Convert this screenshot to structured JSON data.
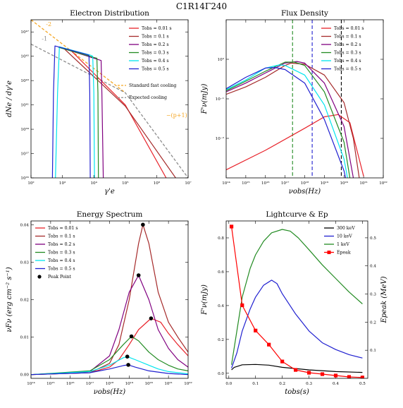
{
  "figure_title": "C1R14Γ240",
  "colors": {
    "t001": "#e8222a",
    "t01": "#a52a2a",
    "t02": "#800080",
    "t03": "#228b22",
    "t04": "#00e5ee",
    "t05": "#1f1fd0",
    "orange": "#f5a623",
    "gray": "#8c8c8c",
    "c300": "#000000",
    "c10": "#1f1fd0",
    "c1": "#228b22",
    "epeak": "#ff0000"
  },
  "chart_data": [
    {
      "type": "line",
      "title": "Electron Distribution",
      "xlabel": "γ'e",
      "ylabel": "dNe / dγ'e",
      "xscale": "log",
      "yscale": "log",
      "xlim": [
        100,
        10000000
      ],
      "ylim": [
        1e+35,
        1e+48
      ],
      "x_ticks": [
        {
          "v": 100,
          "l": "10²"
        },
        {
          "v": 1000,
          "l": "10³"
        },
        {
          "v": 10000,
          "l": "10⁴"
        },
        {
          "v": 100000,
          "l": "10⁵"
        },
        {
          "v": 1000000,
          "l": "10⁶"
        },
        {
          "v": 10000000,
          "l": "10⁷"
        }
      ],
      "y_ticks": [
        {
          "v": 1e+35,
          "l": "10³⁵"
        },
        {
          "v": 1e+37,
          "l": "10³⁷"
        },
        {
          "v": 1e+39,
          "l": "10³⁹"
        },
        {
          "v": 1e+41,
          "l": "10⁴¹"
        },
        {
          "v": 1e+43,
          "l": "10⁴³"
        },
        {
          "v": 1e+45,
          "l": "10⁴⁵"
        },
        {
          "v": 1e+47,
          "l": "10⁴⁷"
        }
      ],
      "legend_position": "top-right",
      "series": [
        {
          "name": "Tobs = 0.01 s",
          "color_key": "t001",
          "x": [
            1800,
            2000,
            100000,
            2000000
          ],
          "y": [
            3e+45,
            2.5e+45,
            1e+41,
            1e+35
          ]
        },
        {
          "name": "Tobs = 0.1 s",
          "color_key": "t01",
          "x": [
            1000,
            1100,
            100000,
            4000000
          ],
          "y": [
            5e+45,
            4.5e+45,
            8e+40,
            1e+35
          ]
        },
        {
          "name": "Tobs = 0.2 s",
          "color_key": "t02",
          "x": [
            880,
            1000,
            15000,
            17000,
            18000,
            20000
          ],
          "y": [
            5e+45,
            4.6e+45,
            5e+44,
            4.5e+44,
            1e+42,
            1e+35
          ]
        },
        {
          "name": "Tobs = 0.3 s",
          "color_key": "t03",
          "x": [
            750,
            900,
            10000,
            12500,
            13500,
            14000
          ],
          "y": [
            5.5e+45,
            4.8e+45,
            8e+44,
            7e+44,
            1e+42,
            1e+35
          ]
        },
        {
          "name": "Tobs = 0.4 s",
          "color_key": "t04",
          "x": [
            600,
            700,
            800,
            8000,
            9200,
            10000,
            10500
          ],
          "y": [
            1e+35,
            1e+42,
            6e+45,
            1.2e+45,
            1e+45,
            1e+42,
            1e+35
          ]
        },
        {
          "name": "Tobs = 0.5 s",
          "color_key": "t05",
          "x": [
            480,
            520,
            580,
            6000,
            7000,
            7400,
            7700
          ],
          "y": [
            1e+35,
            1e+42,
            7e+45,
            1.4e+45,
            1.2e+45,
            1e+42,
            1e+35
          ]
        }
      ],
      "reference_lines": [
        {
          "name": "Standard fast cooling",
          "color_key": "orange",
          "x": [
            100,
            100000
          ],
          "y": [
            1e+48,
            1e+42
          ]
        },
        {
          "name": "Expected cooling",
          "color_key": "gray",
          "x": [
            100,
            100000,
            10000000
          ],
          "y": [
            1e+46,
            1e+42,
            1e+35
          ]
        }
      ],
      "annotations": [
        {
          "text": "-2",
          "color_key": "orange",
          "x": 300,
          "y": 3e+47
        },
        {
          "text": "-1",
          "color_key": "gray",
          "x": 220,
          "y": 2e+46
        },
        {
          "text": "−(p+1)",
          "color_key": "orange",
          "x": 2000000,
          "y": 1e+40
        }
      ]
    },
    {
      "type": "line",
      "title": "Flux Density",
      "xlabel": "νobs(Hz)",
      "ylabel": "F'ν(mJy)",
      "xscale": "log",
      "yscale": "log",
      "xlim": [
        100000000000000.0,
        1e+22
      ],
      "ylim": [
        0.001,
        10
      ],
      "x_ticks": [
        {
          "v": 100000000000000.0,
          "l": "10¹⁴"
        },
        {
          "v": 1000000000000000.0,
          "l": "10¹⁵"
        },
        {
          "v": 1e+16,
          "l": "10¹⁶"
        },
        {
          "v": 1e+17,
          "l": "10¹⁷"
        },
        {
          "v": 1e+18,
          "l": "10¹⁸"
        },
        {
          "v": 1e+19,
          "l": "10¹⁹"
        },
        {
          "v": 1e+20,
          "l": "10²⁰"
        },
        {
          "v": 1e+21,
          "l": "10²¹"
        },
        {
          "v": 1e+22,
          "l": "10²²"
        }
      ],
      "y_ticks": [
        {
          "v": 0.01,
          "l": "10⁻²"
        },
        {
          "v": 0.1,
          "l": "10⁻¹"
        },
        {
          "v": 1,
          "l": "10⁰"
        }
      ],
      "legend_position": "top-right",
      "vlines": [
        {
          "x": 2.4e+17,
          "color_key": "c1"
        },
        {
          "x": 2.4e+18,
          "color_key": "c10"
        },
        {
          "x": 7.3e+19,
          "color_key": "c300"
        }
      ],
      "series": [
        {
          "name": "Tobs = 0.01 s",
          "color_key": "t001",
          "x": [
            100000000000000.0,
            1e+16,
            1e+18,
            1e+19,
            5e+19,
            2e+20,
            1e+21
          ],
          "y": [
            0.0016,
            0.005,
            0.018,
            0.035,
            0.04,
            0.025,
            0.0011
          ]
        },
        {
          "name": "Tobs = 0.1 s",
          "color_key": "t01",
          "x": [
            100000000000000.0,
            1000000000000000.0,
            1e+16,
            1e+17,
            2e+17,
            1e+18,
            1e+19,
            1e+20,
            3e+20,
            6e+20
          ],
          "y": [
            0.13,
            0.2,
            0.35,
            0.7,
            0.8,
            0.75,
            0.4,
            0.08,
            0.01,
            0.001
          ]
        },
        {
          "name": "Tobs = 0.2 s",
          "color_key": "t02",
          "x": [
            100000000000000.0,
            1000000000000000.0,
            1e+16,
            1e+17,
            4e+17,
            1e+18,
            1e+19,
            1e+20,
            3e+20
          ],
          "y": [
            0.15,
            0.25,
            0.45,
            0.8,
            0.88,
            0.8,
            0.25,
            0.02,
            0.001
          ]
        },
        {
          "name": "Tobs = 0.3 s",
          "color_key": "t03",
          "x": [
            100000000000000.0,
            1000000000000000.0,
            1e+16,
            1e+17,
            3e+17,
            1e+18,
            1e+19,
            1e+20,
            2e+20
          ],
          "y": [
            0.16,
            0.28,
            0.5,
            0.85,
            0.85,
            0.7,
            0.15,
            0.008,
            0.001
          ]
        },
        {
          "name": "Tobs = 0.4 s",
          "color_key": "t04",
          "x": [
            100000000000000.0,
            1000000000000000.0,
            1e+16,
            5e+16,
            1e+17,
            1e+18,
            1e+19,
            1e+20,
            1.5e+20
          ],
          "y": [
            0.17,
            0.3,
            0.6,
            0.72,
            0.7,
            0.4,
            0.07,
            0.003,
            0.001
          ]
        },
        {
          "name": "Tobs = 0.5 s",
          "color_key": "t05",
          "x": [
            100000000000000.0,
            1000000000000000.0,
            1e+16,
            3e+16,
            1e+17,
            1e+18,
            1e+19,
            1e+20,
            1.2e+20
          ],
          "y": [
            0.18,
            0.35,
            0.6,
            0.62,
            0.55,
            0.25,
            0.03,
            0.0015,
            0.001
          ]
        }
      ]
    },
    {
      "type": "line",
      "title": "Energy Spectrum",
      "xlabel": "νobs(Hz)",
      "ylabel": "νFν (erg cm⁻² s⁻¹)",
      "xscale": "log",
      "yscale": "linear",
      "xlim": [
        100000000000000.0,
        1e+22
      ],
      "ylim": [
        -0.001,
        0.041
      ],
      "x_ticks": [
        {
          "v": 100000000000000.0,
          "l": "10¹⁴"
        },
        {
          "v": 1000000000000000.0,
          "l": "10¹⁵"
        },
        {
          "v": 1e+16,
          "l": "10¹⁶"
        },
        {
          "v": 1e+17,
          "l": "10¹⁷"
        },
        {
          "v": 1e+18,
          "l": "10¹⁸"
        },
        {
          "v": 1e+19,
          "l": "10¹⁹"
        },
        {
          "v": 1e+20,
          "l": "10²⁰"
        },
        {
          "v": 1e+21,
          "l": "10²¹"
        },
        {
          "v": 1e+22,
          "l": "10²²"
        }
      ],
      "y_ticks": [
        {
          "v": 0,
          "l": "0.00"
        },
        {
          "v": 0.01,
          "l": "0.01"
        },
        {
          "v": 0.02,
          "l": "0.02"
        },
        {
          "v": 0.03,
          "l": "0.03"
        },
        {
          "v": 0.04,
          "l": "0.04"
        }
      ],
      "legend_position": "top-left",
      "series": [
        {
          "name": "Tobs = 0.01 s",
          "color_key": "t001",
          "x": [
            100000000000000.0,
            1e+17,
            1e+18,
            3e+18,
            1e+19,
            3e+19,
            1.3e+20,
            4e+20,
            1e+21,
            3e+21,
            1e+22
          ],
          "y": [
            0,
            0.0005,
            0.002,
            0.004,
            0.008,
            0.012,
            0.015,
            0.014,
            0.011,
            0.008,
            0.005
          ]
        },
        {
          "name": "Tobs = 0.1 s",
          "color_key": "t01",
          "x": [
            100000000000000.0,
            1e+17,
            1e+18,
            3e+18,
            1e+19,
            3e+19,
            5e+19,
            1e+20,
            3e+20,
            1e+21,
            3e+21,
            1e+22
          ],
          "y": [
            0,
            0.0005,
            0.003,
            0.008,
            0.02,
            0.035,
            0.04,
            0.035,
            0.022,
            0.014,
            0.01,
            0.006
          ]
        },
        {
          "name": "Tobs = 0.2 s",
          "color_key": "t02",
          "x": [
            100000000000000.0,
            1e+17,
            1e+18,
            3e+18,
            1e+19,
            3e+19,
            1e+20,
            3e+20,
            1e+21,
            3e+21,
            1e+22
          ],
          "y": [
            0,
            0.0008,
            0.005,
            0.012,
            0.022,
            0.0265,
            0.02,
            0.012,
            0.007,
            0.004,
            0.002
          ]
        },
        {
          "name": "Tobs = 0.3 s",
          "color_key": "t03",
          "x": [
            100000000000000.0,
            1e+17,
            1e+18,
            5e+18,
            1.3e+19,
            3e+19,
            1e+20,
            3e+20,
            1e+21,
            3e+21,
            1e+22
          ],
          "y": [
            0,
            0.001,
            0.004,
            0.008,
            0.0102,
            0.009,
            0.006,
            0.004,
            0.0025,
            0.0015,
            0.001
          ]
        },
        {
          "name": "Tobs = 0.4 s",
          "color_key": "t04",
          "x": [
            100000000000000.0,
            1e+17,
            1e+18,
            5e+18,
            8e+18,
            2e+19,
            1e+20,
            3e+20,
            1e+21,
            1e+22
          ],
          "y": [
            0,
            0.0008,
            0.0025,
            0.0045,
            0.0048,
            0.004,
            0.0025,
            0.0015,
            0.0008,
            0.0002
          ]
        },
        {
          "name": "Tobs = 0.5 s",
          "color_key": "t05",
          "x": [
            100000000000000.0,
            1e+17,
            1e+18,
            5e+18,
            9e+18,
            2e+19,
            1e+20,
            1e+21,
            1e+22
          ],
          "y": [
            0,
            0.0005,
            0.0015,
            0.0024,
            0.0026,
            0.002,
            0.001,
            0.0003,
            0
          ]
        }
      ],
      "peak_points": {
        "name": "Peak Point",
        "x": [
          1.3e+20,
          5e+19,
          3e+19,
          1.3e+19,
          8e+18,
          9e+18
        ],
        "y": [
          0.015,
          0.04,
          0.0265,
          0.0102,
          0.0048,
          0.0026
        ]
      }
    },
    {
      "type": "line",
      "title": "Lightcurve & Ep",
      "xlabel": "tobs(s)",
      "ylabel": "F'ν(mJy)",
      "ylabel_right": "Epeak (MeV)",
      "xlim": [
        -0.01,
        0.52
      ],
      "ylim": [
        -0.03,
        0.9
      ],
      "ylim_right": [
        0,
        0.56
      ],
      "x_ticks": [
        {
          "v": 0,
          "l": "0.0"
        },
        {
          "v": 0.1,
          "l": "0.1"
        },
        {
          "v": 0.2,
          "l": "0.2"
        },
        {
          "v": 0.3,
          "l": "0.3"
        },
        {
          "v": 0.4,
          "l": "0.4"
        },
        {
          "v": 0.5,
          "l": "0.5"
        }
      ],
      "y_ticks": [
        {
          "v": 0,
          "l": "0.0"
        },
        {
          "v": 0.2,
          "l": "0.2"
        },
        {
          "v": 0.4,
          "l": "0.4"
        },
        {
          "v": 0.6,
          "l": "0.6"
        },
        {
          "v": 0.8,
          "l": "0.8"
        }
      ],
      "y_ticks_right": [
        {
          "v": 0.1,
          "l": "0.1"
        },
        {
          "v": 0.2,
          "l": "0.2"
        },
        {
          "v": 0.3,
          "l": "0.3"
        },
        {
          "v": 0.4,
          "l": "0.4"
        },
        {
          "v": 0.5,
          "l": "0.5"
        }
      ],
      "legend_position": "top-right",
      "series": [
        {
          "name": "300 keV",
          "color_key": "c300",
          "axis": "left",
          "x": [
            0.01,
            0.02,
            0.05,
            0.1,
            0.15,
            0.2,
            0.3,
            0.4,
            0.5
          ],
          "y": [
            0.02,
            0.035,
            0.05,
            0.052,
            0.048,
            0.035,
            0.02,
            0.01,
            0.005
          ]
        },
        {
          "name": "10 keV",
          "color_key": "c10",
          "axis": "left",
          "x": [
            0.01,
            0.03,
            0.05,
            0.08,
            0.1,
            0.13,
            0.16,
            0.18,
            0.2,
            0.25,
            0.3,
            0.35,
            0.4,
            0.45,
            0.5
          ],
          "y": [
            0.03,
            0.12,
            0.25,
            0.38,
            0.45,
            0.52,
            0.55,
            0.53,
            0.47,
            0.35,
            0.25,
            0.18,
            0.14,
            0.11,
            0.09
          ]
        },
        {
          "name": "1 keV",
          "color_key": "c1",
          "axis": "left",
          "x": [
            0.01,
            0.03,
            0.05,
            0.08,
            0.1,
            0.13,
            0.16,
            0.2,
            0.23,
            0.26,
            0.3,
            0.35,
            0.4,
            0.45,
            0.5
          ],
          "y": [
            0.05,
            0.25,
            0.45,
            0.62,
            0.7,
            0.78,
            0.83,
            0.85,
            0.84,
            0.8,
            0.73,
            0.64,
            0.56,
            0.48,
            0.41
          ]
        },
        {
          "name": "Epeak",
          "color_key": "epeak",
          "axis": "right",
          "markers": "square",
          "x": [
            0.01,
            0.05,
            0.1,
            0.15,
            0.2,
            0.25,
            0.3,
            0.35,
            0.4,
            0.45,
            0.5
          ],
          "y": [
            0.54,
            0.26,
            0.17,
            0.12,
            0.06,
            0.03,
            0.02,
            0.015,
            0.01,
            0.005,
            0.003
          ]
        }
      ]
    }
  ]
}
